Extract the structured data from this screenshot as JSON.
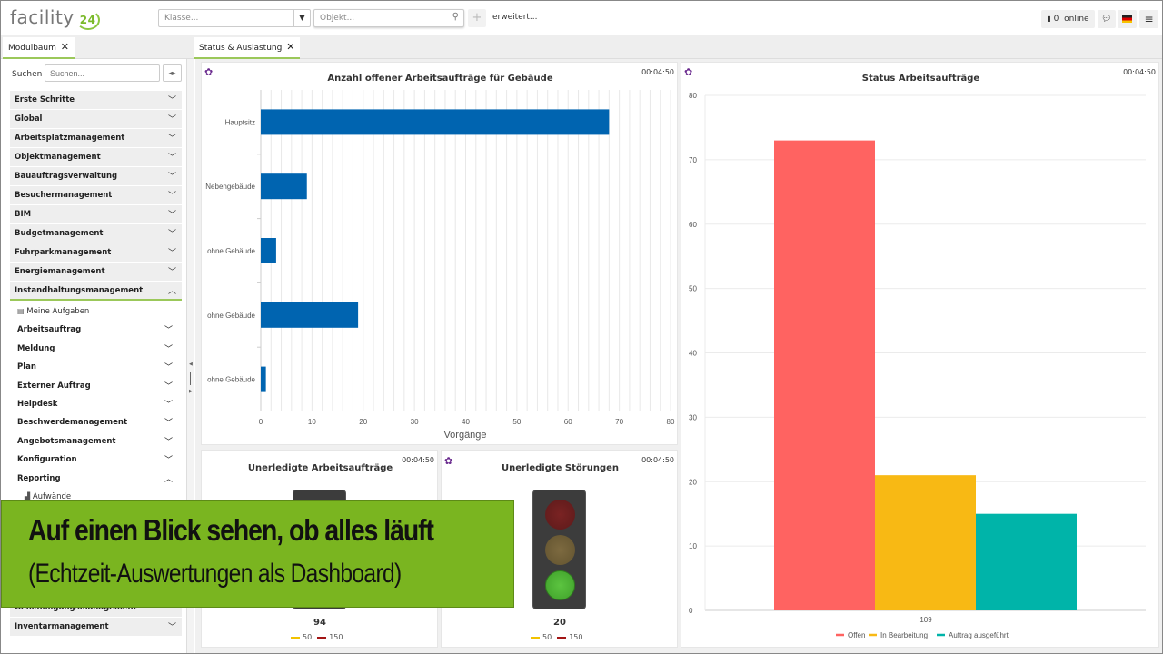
{
  "header": {
    "logo_text": "facility",
    "logo_num": "24",
    "klasse_placeholder": "Klasse...",
    "objekt_placeholder": "Objekt...",
    "plus": "+",
    "erweitert": "erweitert...",
    "online_count": "0",
    "online_label": "online",
    "icons": {
      "chat": "speech-bubble-icon",
      "flag": "german-flag-icon",
      "menu": "hamburger-icon"
    }
  },
  "tabs": {
    "left": "Modulbaum",
    "main": "Status & Auslastung",
    "close": "✕"
  },
  "sidebar": {
    "search_label": "Suchen",
    "search_placeholder": "Suchen...",
    "sections": [
      {
        "label": "Erste Schritte"
      },
      {
        "label": "Global"
      },
      {
        "label": "Arbeitsplatzmanagement"
      },
      {
        "label": "Objektmanagement"
      },
      {
        "label": "Bauauftragsverwaltung"
      },
      {
        "label": "Besuchermanagement"
      },
      {
        "label": "BIM"
      },
      {
        "label": "Budgetmanagement"
      },
      {
        "label": "Fuhrparkmanagement"
      },
      {
        "label": "Energiemanagement"
      },
      {
        "label": "Instandhaltungsmanagement"
      }
    ],
    "open_section_items": [
      {
        "label": "Meine Aufgaben"
      },
      {
        "label": "Arbeitsauftrag"
      },
      {
        "label": "Meldung"
      },
      {
        "label": "Plan"
      },
      {
        "label": "Externer Auftrag"
      },
      {
        "label": "Helpdesk"
      },
      {
        "label": "Beschwerdemanagement"
      },
      {
        "label": "Angebotsmanagement"
      },
      {
        "label": "Konfiguration"
      },
      {
        "label": "Reporting"
      },
      {
        "label": "Aufwände"
      }
    ],
    "bottom_sections": [
      {
        "label": "Genehmigungsmanagement"
      },
      {
        "label": "Inventarmanagement"
      }
    ]
  },
  "panels": {
    "timestamp": "00:04:50",
    "tl1": {
      "title": "Unerledigte Arbeitsaufträge",
      "value": "94",
      "legend": [
        "50",
        "150"
      ]
    },
    "tl2": {
      "title": "Unerledigte Störungen",
      "value": "20",
      "legend": [
        "50",
        "150"
      ]
    }
  },
  "colors": {
    "bar_blue": "#0064b0",
    "offen": "#ff6361",
    "bearbeitung": "#f8b914",
    "ausgefuehrt": "#00b4a9",
    "green_accent": "#9bc85a",
    "legend_yellow": "#f2c200",
    "legend_red": "#a31515"
  },
  "chart_data": [
    {
      "type": "bar",
      "orientation": "horizontal",
      "title": "Anzahl offener Arbeitsaufträge für Gebäude",
      "categories": [
        "Hauptsitz",
        "Nebengebäude",
        "ohne Gebäude",
        "ohne Gebäude",
        "ohne Gebäude"
      ],
      "values": [
        68,
        9,
        3,
        19,
        1
      ],
      "xlabel": "Vorgänge",
      "xlim": [
        0,
        80
      ],
      "xticks": [
        0,
        10,
        20,
        30,
        40,
        50,
        60,
        70,
        80
      ],
      "grid": true
    },
    {
      "type": "bar",
      "title": "Status Arbeitsaufträge",
      "categories": [
        "109"
      ],
      "series": [
        {
          "name": "Offen",
          "values": [
            73
          ]
        },
        {
          "name": "In Bearbeitung",
          "values": [
            21
          ]
        },
        {
          "name": "Auftrag ausgeführt",
          "values": [
            15
          ]
        }
      ],
      "ylim": [
        0,
        80
      ],
      "yticks": [
        0,
        10,
        20,
        30,
        40,
        50,
        60,
        70,
        80
      ],
      "legend": "bottom",
      "grid": true
    }
  ],
  "banner": {
    "line1": "Auf einen Blick sehen, ob alles läuft",
    "line2": "(Echtzeit-Auswertungen als Dashboard)"
  }
}
